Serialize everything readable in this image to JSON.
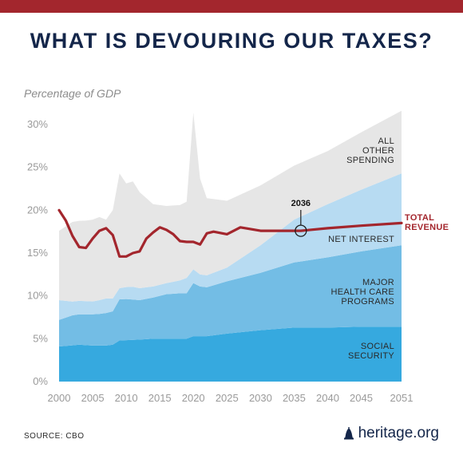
{
  "title": "WHAT IS DEVOURING OUR TAXES?",
  "source": "SOURCE: CBO",
  "brand": "heritage.org",
  "colors": {
    "accent_red": "#a3262d",
    "navy": "#14264a",
    "social_security": "#36a9df",
    "health_care": "#73bde5",
    "net_interest": "#b7dbf2",
    "all_other": "#e6e6e6"
  },
  "chart_data": {
    "type": "area",
    "title": "WHAT IS DEVOURING OUR TAXES?",
    "ylabel": "Percentage of GDP",
    "xlabel": "",
    "xlim": [
      2000,
      2051
    ],
    "ylim": [
      0,
      30
    ],
    "x_ticks": [
      "2000",
      "2005",
      "2010",
      "2015",
      "2020",
      "2025",
      "2030",
      "2035",
      "2040",
      "2045",
      "2051"
    ],
    "y_ticks": [
      "0%",
      "5%",
      "10%",
      "15%",
      "20%",
      "25%",
      "30%"
    ],
    "grid": false,
    "stacked": true,
    "series": [
      {
        "name": "SOCIAL SECURITY",
        "color": "#36a9df",
        "points": [
          [
            2000,
            4.1
          ],
          [
            2003,
            4.3
          ],
          [
            2005,
            4.2
          ],
          [
            2007,
            4.2
          ],
          [
            2008,
            4.3
          ],
          [
            2009,
            4.8
          ],
          [
            2012,
            4.9
          ],
          [
            2014,
            5.0
          ],
          [
            2017,
            5.0
          ],
          [
            2019,
            5.0
          ],
          [
            2020,
            5.3
          ],
          [
            2022,
            5.3
          ],
          [
            2025,
            5.6
          ],
          [
            2030,
            6.0
          ],
          [
            2035,
            6.3
          ],
          [
            2040,
            6.3
          ],
          [
            2045,
            6.4
          ],
          [
            2051,
            6.4
          ]
        ]
      },
      {
        "name": "MAJOR HEALTH CARE PROGRAMS",
        "color": "#73bde5",
        "points": [
          [
            2000,
            3.1
          ],
          [
            2002,
            3.5
          ],
          [
            2004,
            3.6
          ],
          [
            2006,
            3.7
          ],
          [
            2008,
            3.9
          ],
          [
            2009,
            4.8
          ],
          [
            2010,
            4.8
          ],
          [
            2012,
            4.6
          ],
          [
            2014,
            4.8
          ],
          [
            2016,
            5.2
          ],
          [
            2018,
            5.3
          ],
          [
            2019,
            5.3
          ],
          [
            2020,
            6.2
          ],
          [
            2021,
            5.8
          ],
          [
            2022,
            5.7
          ],
          [
            2025,
            6.1
          ],
          [
            2030,
            6.7
          ],
          [
            2035,
            7.6
          ],
          [
            2040,
            8.2
          ],
          [
            2045,
            8.8
          ],
          [
            2051,
            9.5
          ]
        ]
      },
      {
        "name": "NET INTEREST",
        "color": "#b7dbf2",
        "points": [
          [
            2000,
            2.3
          ],
          [
            2002,
            1.6
          ],
          [
            2005,
            1.5
          ],
          [
            2007,
            1.7
          ],
          [
            2008,
            1.5
          ],
          [
            2009,
            1.3
          ],
          [
            2010,
            1.4
          ],
          [
            2011,
            1.5
          ],
          [
            2012,
            1.4
          ],
          [
            2014,
            1.3
          ],
          [
            2016,
            1.3
          ],
          [
            2018,
            1.5
          ],
          [
            2019,
            1.8
          ],
          [
            2020,
            1.6
          ],
          [
            2021,
            1.4
          ],
          [
            2022,
            1.4
          ],
          [
            2025,
            1.6
          ],
          [
            2030,
            3.2
          ],
          [
            2035,
            5.0
          ],
          [
            2040,
            6.2
          ],
          [
            2045,
            7.2
          ],
          [
            2051,
            8.4
          ]
        ]
      },
      {
        "name": "ALL OTHER SPENDING",
        "color": "#e6e6e6",
        "points": [
          [
            2000,
            8.1
          ],
          [
            2002,
            9.3
          ],
          [
            2004,
            9.4
          ],
          [
            2006,
            9.7
          ],
          [
            2007,
            9.2
          ],
          [
            2008,
            10.3
          ],
          [
            2009,
            13.4
          ],
          [
            2010,
            12.1
          ],
          [
            2011,
            12.3
          ],
          [
            2012,
            11.2
          ],
          [
            2013,
            10.4
          ],
          [
            2014,
            9.6
          ],
          [
            2016,
            9.0
          ],
          [
            2018,
            8.8
          ],
          [
            2019,
            8.9
          ],
          [
            2020,
            18.3
          ],
          [
            2021,
            11.2
          ],
          [
            2022,
            9.0
          ],
          [
            2025,
            7.8
          ],
          [
            2030,
            7.0
          ],
          [
            2035,
            6.3
          ],
          [
            2040,
            6.2
          ],
          [
            2045,
            6.7
          ],
          [
            2051,
            7.3
          ]
        ]
      }
    ],
    "revenue_line": {
      "name": "TOTAL REVENUE",
      "color": "#a3262d",
      "points": [
        [
          2000,
          20.0
        ],
        [
          2001,
          18.8
        ],
        [
          2002,
          17.0
        ],
        [
          2003,
          15.7
        ],
        [
          2004,
          15.6
        ],
        [
          2005,
          16.7
        ],
        [
          2006,
          17.6
        ],
        [
          2007,
          17.9
        ],
        [
          2008,
          17.1
        ],
        [
          2009,
          14.6
        ],
        [
          2010,
          14.6
        ],
        [
          2011,
          15.0
        ],
        [
          2012,
          15.2
        ],
        [
          2013,
          16.7
        ],
        [
          2014,
          17.4
        ],
        [
          2015,
          18.0
        ],
        [
          2016,
          17.7
        ],
        [
          2017,
          17.2
        ],
        [
          2018,
          16.4
        ],
        [
          2019,
          16.3
        ],
        [
          2020,
          16.3
        ],
        [
          2021,
          16.0
        ],
        [
          2022,
          17.3
        ],
        [
          2023,
          17.5
        ],
        [
          2025,
          17.2
        ],
        [
          2027,
          18.0
        ],
        [
          2030,
          17.6
        ],
        [
          2036,
          17.6
        ],
        [
          2040,
          17.9
        ],
        [
          2045,
          18.2
        ],
        [
          2051,
          18.5
        ]
      ]
    },
    "annotation": {
      "label": "2036",
      "x": 2036,
      "y": 17.6
    },
    "series_labels": [
      {
        "lines": [
          "ALL",
          "OTHER",
          "SPENDING"
        ],
        "color": "#2a2a2a"
      },
      {
        "lines": [
          "NET INTEREST"
        ],
        "color": "#2a2a2a"
      },
      {
        "lines": [
          "MAJOR",
          "HEALTH CARE",
          "PROGRAMS"
        ],
        "color": "#2a2a2a"
      },
      {
        "lines": [
          "SOCIAL",
          "SECURITY"
        ],
        "color": "#2a2a2a"
      },
      {
        "lines": [
          "TOTAL",
          "REVENUE"
        ],
        "color": "#a3262d"
      }
    ]
  }
}
